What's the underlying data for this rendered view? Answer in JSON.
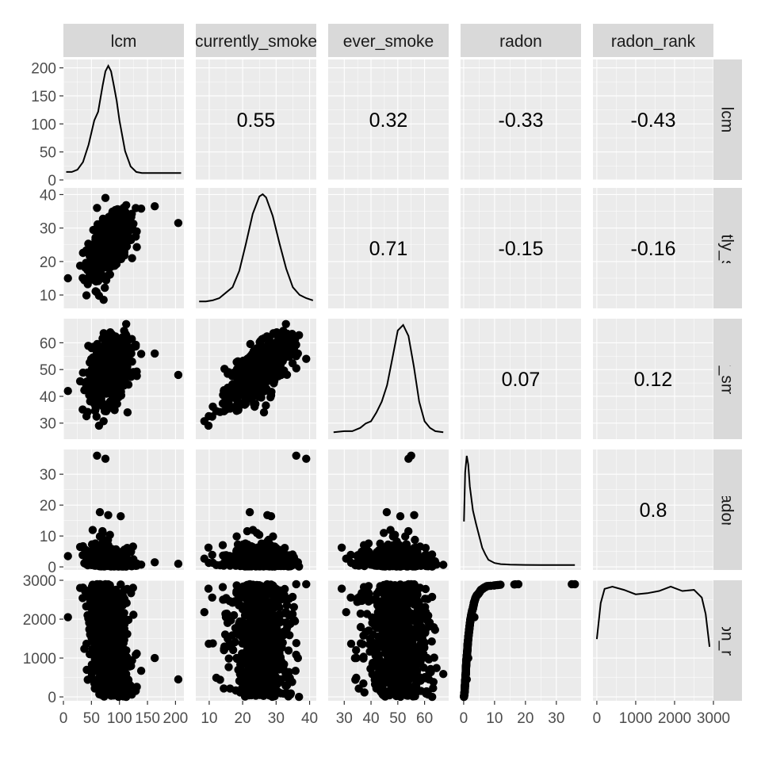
{
  "chart_data": {
    "type": "scatter",
    "title": "",
    "variables": [
      "lcm",
      "currently_smoke",
      "ever_smoke",
      "radon",
      "radon_rank"
    ],
    "column_strip_labels": [
      "lcm",
      "currently_smoke",
      "ever_smoke",
      "radon",
      "radon_rank"
    ],
    "row_strip_labels": [
      "lcm",
      "currently_smoke",
      "ever_smoke",
      "radon",
      "radon_rank"
    ],
    "axes": {
      "lcm": {
        "range": [
          0,
          215
        ],
        "ticks": [
          0,
          50,
          100,
          150,
          200
        ],
        "tick_labels": [
          "0",
          "50",
          "100",
          "150",
          "200"
        ]
      },
      "currently_smoke": {
        "range": [
          6,
          42
        ],
        "ticks": [
          10,
          20,
          30,
          40
        ],
        "tick_labels": [
          "10",
          "20",
          "30",
          "40"
        ]
      },
      "ever_smoke": {
        "range": [
          24,
          69
        ],
        "ticks": [
          30,
          40,
          50,
          60
        ],
        "tick_labels": [
          "30",
          "40",
          "50",
          "60"
        ]
      },
      "radon": {
        "range": [
          -1,
          38
        ],
        "ticks": [
          0,
          10,
          20,
          30
        ],
        "tick_labels": [
          "0",
          "10",
          "20",
          "30"
        ]
      },
      "radon_rank": {
        "range": [
          -100,
          3000
        ],
        "ticks": [
          0,
          1000,
          2000,
          3000
        ],
        "tick_labels": [
          "0",
          "1000",
          "2000",
          "3000"
        ]
      }
    },
    "diagonal_density_labels": {
      "lcm": [
        "0",
        "50",
        "100",
        "150",
        "200"
      ],
      "label_ticks_value": [
        0,
        50,
        100,
        150,
        200
      ],
      "range": [
        0,
        215
      ]
    },
    "correlations": [
      {
        "row": "lcm",
        "col": "currently_smoke",
        "value": "0.55"
      },
      {
        "row": "lcm",
        "col": "ever_smoke",
        "value": "0.32"
      },
      {
        "row": "lcm",
        "col": "radon",
        "value": "-0.33"
      },
      {
        "row": "lcm",
        "col": "radon_rank",
        "value": "-0.43"
      },
      {
        "row": "currently_smoke",
        "col": "ever_smoke",
        "value": "0.71"
      },
      {
        "row": "currently_smoke",
        "col": "radon",
        "value": "-0.15"
      },
      {
        "row": "currently_smoke",
        "col": "radon_rank",
        "value": "-0.16"
      },
      {
        "row": "ever_smoke",
        "col": "radon",
        "value": "0.07"
      },
      {
        "row": "ever_smoke",
        "col": "radon_rank",
        "value": "0.12"
      },
      {
        "row": "radon",
        "col": "radon_rank",
        "value": "0.8"
      }
    ],
    "densities": {
      "lcm": {
        "x": [
          5,
          15,
          25,
          35,
          45,
          55,
          62,
          70,
          75,
          80,
          85,
          90,
          95,
          100,
          110,
          120,
          130,
          140,
          160,
          180,
          200,
          210
        ],
        "y": [
          0.03,
          0.03,
          0.05,
          0.12,
          0.28,
          0.5,
          0.58,
          0.82,
          0.95,
          1.0,
          0.95,
          0.82,
          0.68,
          0.5,
          0.22,
          0.08,
          0.03,
          0.02,
          0.02,
          0.02,
          0.02,
          0.02
        ]
      },
      "currently_smoke": {
        "x": [
          7,
          9,
          11,
          13,
          15,
          17,
          19,
          21,
          23,
          25,
          26,
          27,
          29,
          31,
          33,
          35,
          37,
          39,
          41
        ],
        "y": [
          0.02,
          0.02,
          0.03,
          0.05,
          0.1,
          0.15,
          0.3,
          0.55,
          0.82,
          0.98,
          1.0,
          0.97,
          0.8,
          0.55,
          0.32,
          0.15,
          0.08,
          0.05,
          0.03
        ]
      },
      "ever_smoke": {
        "x": [
          26,
          30,
          33,
          36,
          38,
          40,
          42,
          44,
          46,
          48,
          50,
          52,
          54,
          56,
          58,
          60,
          62,
          64,
          67
        ],
        "y": [
          0.02,
          0.03,
          0.03,
          0.06,
          0.1,
          0.12,
          0.2,
          0.3,
          0.45,
          0.7,
          0.95,
          1.0,
          0.9,
          0.62,
          0.3,
          0.12,
          0.06,
          0.03,
          0.02
        ]
      },
      "radon": {
        "x": [
          0.1,
          0.5,
          1.0,
          1.5,
          2.0,
          3.0,
          4.0,
          5.0,
          6.0,
          7.0,
          8.0,
          10,
          12,
          15,
          20,
          25,
          30,
          36
        ],
        "y": [
          0.4,
          0.85,
          1.0,
          0.92,
          0.72,
          0.5,
          0.38,
          0.27,
          0.16,
          0.1,
          0.05,
          0.02,
          0.01,
          0.005,
          0.003,
          0.002,
          0.002,
          0.002
        ]
      },
      "radon_rank": {
        "x": [
          0,
          100,
          200,
          400,
          700,
          1000,
          1300,
          1600,
          1900,
          2200,
          2500,
          2700,
          2800,
          2900
        ],
        "y": [
          0.52,
          0.85,
          0.98,
          1.0,
          0.97,
          0.93,
          0.94,
          0.96,
          1.0,
          0.96,
          0.97,
          0.9,
          0.75,
          0.45
        ]
      }
    }
  }
}
